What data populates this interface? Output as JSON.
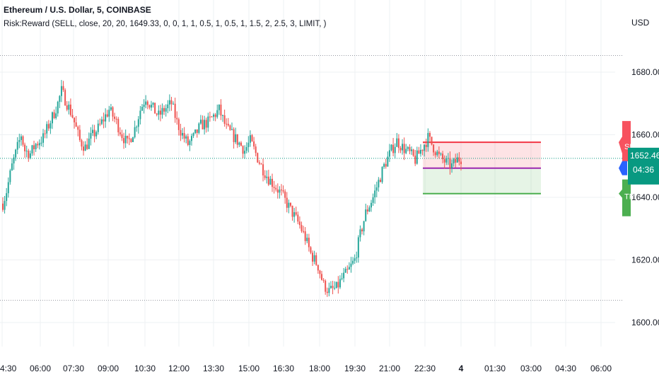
{
  "chart_data": {
    "type": "candlestick",
    "title": "Ethereum / U.S. Dollar, 5, COINBASE",
    "indicator_label": "Risk:Reward (SELL, close, 20, 20, 1649.33, 0, 0, 1, 1, 0.5, 1, 0.5, 1, 1.5, 2, 2.5, 3, LIMIT, )",
    "currency": "USD",
    "y_ticks": [
      "1600.00",
      "1620.00",
      "1640.00",
      "1660.00",
      "1680.00"
    ],
    "x_ticks": [
      "4:30",
      "06:00",
      "07:30",
      "09:00",
      "10:30",
      "12:00",
      "13:30",
      "15:00",
      "16:30",
      "18:00",
      "19:30",
      "21:00",
      "22:30",
      "4",
      "01:30",
      "03:00",
      "04:30",
      "06:00"
    ],
    "ylim": [
      1594,
      1700
    ],
    "current_price": "1652.46",
    "countdown": "04:36",
    "price_path": [
      [
        0,
        1638
      ],
      [
        2,
        1642
      ],
      [
        5,
        1650
      ],
      [
        8,
        1656
      ],
      [
        10,
        1660
      ],
      [
        12,
        1655
      ],
      [
        15,
        1654
      ],
      [
        18,
        1657
      ],
      [
        22,
        1659
      ],
      [
        25,
        1663
      ],
      [
        28,
        1667
      ],
      [
        30,
        1670
      ],
      [
        32,
        1674
      ],
      [
        35,
        1670
      ],
      [
        38,
        1666
      ],
      [
        40,
        1662
      ],
      [
        42,
        1658
      ],
      [
        45,
        1656
      ],
      [
        48,
        1659
      ],
      [
        52,
        1662
      ],
      [
        55,
        1665
      ],
      [
        58,
        1668
      ],
      [
        62,
        1664
      ],
      [
        65,
        1660
      ],
      [
        68,
        1657
      ],
      [
        72,
        1662
      ],
      [
        75,
        1668
      ],
      [
        78,
        1672
      ],
      [
        81,
        1669
      ],
      [
        85,
        1666
      ],
      [
        88,
        1668
      ],
      [
        92,
        1670
      ],
      [
        95,
        1664
      ],
      [
        98,
        1660
      ],
      [
        101,
        1657
      ],
      [
        104,
        1659
      ],
      [
        108,
        1663
      ],
      [
        112,
        1664
      ],
      [
        115,
        1666
      ],
      [
        118,
        1668
      ],
      [
        120,
        1665
      ],
      [
        122,
        1662
      ],
      [
        125,
        1660
      ],
      [
        128,
        1658
      ],
      [
        132,
        1655
      ],
      [
        135,
        1658
      ],
      [
        138,
        1654
      ],
      [
        141,
        1650
      ],
      [
        145,
        1646
      ],
      [
        148,
        1644
      ],
      [
        152,
        1641
      ],
      [
        155,
        1638
      ],
      [
        158,
        1635
      ],
      [
        162,
        1631
      ],
      [
        165,
        1627
      ],
      [
        168,
        1622
      ],
      [
        172,
        1618
      ],
      [
        175,
        1612
      ],
      [
        178,
        1610
      ],
      [
        182,
        1611
      ],
      [
        185,
        1614
      ],
      [
        188,
        1616
      ],
      [
        192,
        1620
      ],
      [
        195,
        1628
      ],
      [
        198,
        1635
      ],
      [
        202,
        1640
      ],
      [
        205,
        1645
      ],
      [
        208,
        1650
      ],
      [
        212,
        1655
      ],
      [
        215,
        1658
      ],
      [
        218,
        1656
      ],
      [
        222,
        1654
      ],
      [
        225,
        1652
      ],
      [
        228,
        1655
      ],
      [
        232,
        1659
      ],
      [
        235,
        1656
      ],
      [
        238,
        1653
      ],
      [
        242,
        1651
      ],
      [
        245,
        1650
      ],
      [
        248,
        1652
      ],
      [
        250,
        1652.46
      ]
    ],
    "position": {
      "side": "SELL",
      "entry": 1649.33,
      "stop": 1657.6,
      "target": 1641.2,
      "stop_label": "SL",
      "entry_label": "",
      "target_label": "TP"
    },
    "high_line": 1685.3,
    "low_line": 1607.1,
    "colors": {
      "up": "#26a69a",
      "down": "#ef5350",
      "stop": "#f23645",
      "target": "#4caf50",
      "entry": "#9c27b0",
      "current": "#089981",
      "grid": "#eef0f3",
      "entry_tag": "#2962ff"
    }
  }
}
